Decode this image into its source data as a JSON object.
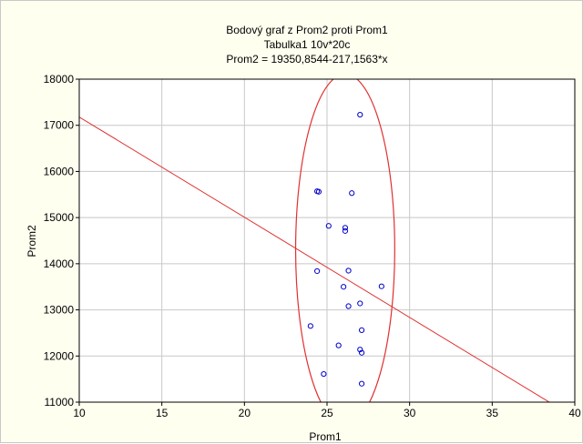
{
  "chart_data": {
    "type": "scatter",
    "title": "Bodový graf z Prom2 proti Prom1",
    "subtitle": "Tabulka1 10v*20c",
    "equation": "Prom2 = 19350,8544-217,1563*x",
    "xlabel": "Prom1",
    "ylabel": "Prom2",
    "xlim": [
      10,
      40
    ],
    "ylim": [
      11000,
      18000
    ],
    "x_ticks": [
      10,
      15,
      20,
      25,
      30,
      35,
      40
    ],
    "y_ticks": [
      11000,
      12000,
      13000,
      14000,
      15000,
      16000,
      17000,
      18000
    ],
    "grid": true,
    "regression": {
      "intercept": 19350.8544,
      "slope": -217.1563
    },
    "ellipse": {
      "center": [
        26.1,
        14310
      ],
      "rx": 3.0,
      "ry": 3800
    },
    "points": [
      [
        27.0,
        17230
      ],
      [
        24.4,
        15570
      ],
      [
        24.5,
        15560
      ],
      [
        26.5,
        15530
      ],
      [
        25.1,
        14820
      ],
      [
        26.1,
        14780
      ],
      [
        26.1,
        14710
      ],
      [
        24.4,
        13840
      ],
      [
        26.3,
        13850
      ],
      [
        28.3,
        13510
      ],
      [
        26.0,
        13500
      ],
      [
        27.0,
        13140
      ],
      [
        26.3,
        13080
      ],
      [
        24.0,
        12650
      ],
      [
        27.1,
        12560
      ],
      [
        25.7,
        12230
      ],
      [
        27.0,
        12140
      ],
      [
        27.1,
        12070
      ],
      [
        24.8,
        11610
      ],
      [
        27.1,
        11400
      ]
    ],
    "colors": {
      "plot_bg": "#ffffff",
      "frame_bg": "#fffff0",
      "points": "#0000cc",
      "fit_line": "#e03030",
      "ellipse": "#e03030",
      "grid": "#c8c8c8"
    }
  }
}
